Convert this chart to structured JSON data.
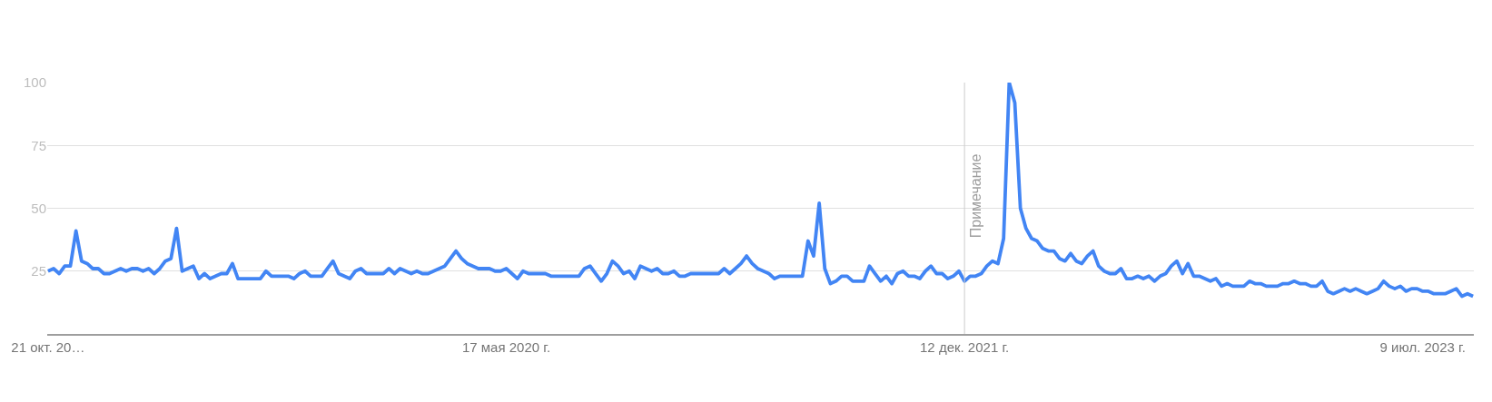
{
  "chart_data": {
    "type": "line",
    "x": [
      "2018-10-21",
      "2018-10-28",
      "2018-11-04",
      "2018-11-11",
      "2018-11-18",
      "2018-11-25",
      "2018-12-02",
      "2018-12-09",
      "2018-12-16",
      "2018-12-23",
      "2018-12-30",
      "2019-01-06",
      "2019-01-13",
      "2019-01-20",
      "2019-01-27",
      "2019-02-03",
      "2019-02-10",
      "2019-02-17",
      "2019-02-24",
      "2019-03-03",
      "2019-03-10",
      "2019-03-17",
      "2019-03-24",
      "2019-03-31",
      "2019-04-07",
      "2019-04-14",
      "2019-04-21",
      "2019-04-28",
      "2019-05-05",
      "2019-05-12",
      "2019-05-19",
      "2019-05-26",
      "2019-06-02",
      "2019-06-09",
      "2019-06-16",
      "2019-06-23",
      "2019-06-30",
      "2019-07-07",
      "2019-07-14",
      "2019-07-21",
      "2019-07-28",
      "2019-08-04",
      "2019-08-11",
      "2019-08-18",
      "2019-08-25",
      "2019-09-01",
      "2019-09-08",
      "2019-09-15",
      "2019-09-22",
      "2019-09-29",
      "2019-10-06",
      "2019-10-13",
      "2019-10-20",
      "2019-10-27",
      "2019-11-03",
      "2019-11-10",
      "2019-11-17",
      "2019-11-24",
      "2019-12-01",
      "2019-12-08",
      "2019-12-15",
      "2019-12-22",
      "2019-12-29",
      "2020-01-05",
      "2020-01-12",
      "2020-01-19",
      "2020-01-26",
      "2020-02-02",
      "2020-02-09",
      "2020-02-16",
      "2020-02-23",
      "2020-03-01",
      "2020-03-08",
      "2020-03-15",
      "2020-03-22",
      "2020-03-29",
      "2020-04-05",
      "2020-04-12",
      "2020-04-19",
      "2020-04-26",
      "2020-05-03",
      "2020-05-10",
      "2020-05-17",
      "2020-05-24",
      "2020-05-31",
      "2020-06-07",
      "2020-06-14",
      "2020-06-21",
      "2020-06-28",
      "2020-07-05",
      "2020-07-12",
      "2020-07-19",
      "2020-07-26",
      "2020-08-02",
      "2020-08-09",
      "2020-08-16",
      "2020-08-23",
      "2020-08-30",
      "2020-09-06",
      "2020-09-13",
      "2020-09-20",
      "2020-09-27",
      "2020-10-04",
      "2020-10-11",
      "2020-10-18",
      "2020-10-25",
      "2020-11-01",
      "2020-11-08",
      "2020-11-15",
      "2020-11-22",
      "2020-11-29",
      "2020-12-06",
      "2020-12-13",
      "2020-12-20",
      "2020-12-27",
      "2021-01-03",
      "2021-01-10",
      "2021-01-17",
      "2021-01-24",
      "2021-01-31",
      "2021-02-07",
      "2021-02-14",
      "2021-02-21",
      "2021-02-28",
      "2021-03-07",
      "2021-03-14",
      "2021-03-21",
      "2021-03-28",
      "2021-04-04",
      "2021-04-11",
      "2021-04-18",
      "2021-04-25",
      "2021-05-02",
      "2021-05-09",
      "2021-05-16",
      "2021-05-23",
      "2021-05-30",
      "2021-06-06",
      "2021-06-13",
      "2021-06-20",
      "2021-06-27",
      "2021-07-04",
      "2021-07-11",
      "2021-07-18",
      "2021-07-25",
      "2021-08-01",
      "2021-08-08",
      "2021-08-15",
      "2021-08-22",
      "2021-08-29",
      "2021-09-05",
      "2021-09-12",
      "2021-09-19",
      "2021-09-26",
      "2021-10-03",
      "2021-10-10",
      "2021-10-17",
      "2021-10-24",
      "2021-10-31",
      "2021-11-07",
      "2021-11-14",
      "2021-11-21",
      "2021-11-28",
      "2021-12-05",
      "2021-12-12",
      "2021-12-19",
      "2021-12-26",
      "2022-01-02",
      "2022-01-09",
      "2022-01-16",
      "2022-01-23",
      "2022-01-30",
      "2022-02-06",
      "2022-02-13",
      "2022-02-20",
      "2022-02-27",
      "2022-03-06",
      "2022-03-13",
      "2022-03-20",
      "2022-03-27",
      "2022-04-03",
      "2022-04-10",
      "2022-04-17",
      "2022-04-24",
      "2022-05-01",
      "2022-05-08",
      "2022-05-15",
      "2022-05-22",
      "2022-05-29",
      "2022-06-05",
      "2022-06-12",
      "2022-06-19",
      "2022-06-26",
      "2022-07-03",
      "2022-07-10",
      "2022-07-17",
      "2022-07-24",
      "2022-07-31",
      "2022-08-07",
      "2022-08-14",
      "2022-08-21",
      "2022-08-28",
      "2022-09-04",
      "2022-09-11",
      "2022-09-18",
      "2022-09-25",
      "2022-10-02",
      "2022-10-09",
      "2022-10-16",
      "2022-10-23",
      "2022-10-30",
      "2022-11-06",
      "2022-11-13",
      "2022-11-20",
      "2022-11-27",
      "2022-12-04",
      "2022-12-11",
      "2022-12-18",
      "2022-12-25",
      "2023-01-01",
      "2023-01-08",
      "2023-01-15",
      "2023-01-22",
      "2023-01-29",
      "2023-02-05",
      "2023-02-12",
      "2023-02-19",
      "2023-02-26",
      "2023-03-05",
      "2023-03-12",
      "2023-03-19",
      "2023-03-26",
      "2023-04-02",
      "2023-04-09",
      "2023-04-16",
      "2023-04-23",
      "2023-04-30",
      "2023-05-07",
      "2023-05-14",
      "2023-05-21",
      "2023-05-28",
      "2023-06-04",
      "2023-06-11",
      "2023-06-18",
      "2023-06-25",
      "2023-07-02",
      "2023-07-09",
      "2023-07-16",
      "2023-07-23",
      "2023-07-30",
      "2023-08-06",
      "2023-08-13",
      "2023-08-20",
      "2023-08-27",
      "2023-09-03",
      "2023-09-10"
    ],
    "series": [
      {
        "color": "#4285f4",
        "values": [
          25,
          26,
          24,
          27,
          27,
          41,
          29,
          28,
          26,
          26,
          24,
          24,
          25,
          26,
          25,
          26,
          26,
          25,
          26,
          24,
          26,
          29,
          30,
          42,
          25,
          26,
          27,
          22,
          24,
          22,
          23,
          24,
          24,
          28,
          22,
          22,
          22,
          22,
          22,
          25,
          23,
          23,
          23,
          23,
          22,
          24,
          25,
          23,
          23,
          23,
          26,
          29,
          24,
          23,
          22,
          25,
          26,
          24,
          24,
          24,
          24,
          26,
          24,
          26,
          25,
          24,
          25,
          24,
          24,
          25,
          26,
          27,
          30,
          33,
          30,
          28,
          27,
          26,
          26,
          26,
          25,
          25,
          26,
          24,
          22,
          25,
          24,
          24,
          24,
          24,
          23,
          23,
          23,
          23,
          23,
          23,
          26,
          27,
          24,
          21,
          24,
          29,
          27,
          24,
          25,
          22,
          27,
          26,
          25,
          26,
          24,
          24,
          25,
          23,
          23,
          24,
          24,
          24,
          24,
          24,
          24,
          26,
          24,
          26,
          28,
          31,
          28,
          26,
          25,
          24,
          22,
          23,
          23,
          23,
          23,
          23,
          37,
          31,
          52,
          26,
          20,
          21,
          23,
          23,
          21,
          21,
          21,
          27,
          24,
          21,
          23,
          20,
          24,
          25,
          23,
          23,
          22,
          25,
          27,
          24,
          24,
          22,
          23,
          25,
          21,
          23,
          23,
          24,
          27,
          29,
          28,
          38,
          100,
          92,
          50,
          42,
          38,
          37,
          34,
          33,
          33,
          30,
          29,
          32,
          29,
          28,
          31,
          33,
          27,
          25,
          24,
          24,
          26,
          22,
          22,
          23,
          22,
          23,
          21,
          23,
          24,
          27,
          29,
          24,
          28,
          23,
          23,
          22,
          21,
          22,
          19,
          20,
          19,
          19,
          19,
          21,
          20,
          20,
          19,
          19,
          19,
          20,
          20,
          21,
          20,
          20,
          19,
          19,
          21,
          17,
          16,
          17,
          18,
          17,
          18,
          17,
          16,
          17,
          18,
          21,
          19,
          18,
          19,
          17,
          18,
          18,
          17,
          17,
          16,
          16,
          16,
          17,
          18,
          15,
          16,
          15
        ]
      }
    ],
    "xlim": [
      "2018-10-20",
      "2023-09-11"
    ],
    "xticks": [
      {
        "value": "2018-10-21",
        "label": "21 окт. 20…"
      },
      {
        "value": "2020-05-17",
        "label": "17 мая 2020 г."
      },
      {
        "value": "2021-12-12",
        "label": "12 дек. 2021 г."
      },
      {
        "value": "2023-07-09",
        "label": "9 июл. 2023 г."
      }
    ],
    "ylim": [
      0,
      100
    ],
    "yticks": [
      25,
      50,
      75,
      100
    ],
    "grid": "y",
    "ref_lines": [
      {
        "axis": "x",
        "value": "2021-12-12",
        "label": "Примечание",
        "color": "#cccccc"
      }
    ]
  }
}
